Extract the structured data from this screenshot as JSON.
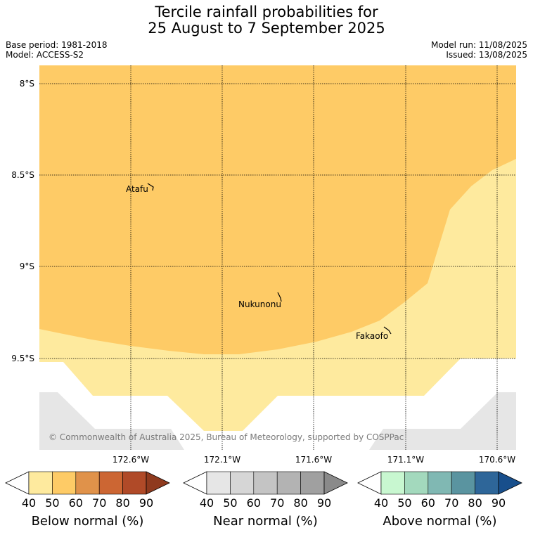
{
  "title": {
    "line1": "Tercile rainfall probabilities for",
    "line2": "25 August to 7 September 2025"
  },
  "meta": {
    "base_period": "Base period: 1981-2018",
    "model": "Model: ACCESS-S2",
    "model_run": "Model run: 11/08/2025",
    "issued": "Issued: 13/08/2025"
  },
  "map": {
    "lat_labels": [
      "8°S",
      "8.5°S",
      "9°S",
      "9.5°S"
    ],
    "lon_labels": [
      "172.6°W",
      "172.1°W",
      "171.6°W",
      "171.1°W",
      "170.6°W"
    ],
    "places": [
      "Atafu",
      "Nukunonu",
      "Fakaofo"
    ],
    "copyright": "© Commonwealth of Australia 2025, Bureau of Meteorology, supported by COSPPac",
    "fill_colors": {
      "below_50_60": "#fecb66",
      "below_40_50": "#feea9e",
      "no_data": "#e6e6e6",
      "background": "#ffffff"
    }
  },
  "colorbars": [
    {
      "label": "Below normal (%)",
      "ticks": [
        "40",
        "50",
        "60",
        "70",
        "80",
        "90"
      ],
      "colors": [
        "#ffffff",
        "#feea9e",
        "#fecb66",
        "#e0924a",
        "#cc6633",
        "#b04a28",
        "#8f3a1e"
      ]
    },
    {
      "label": "Near normal (%)",
      "ticks": [
        "40",
        "50",
        "60",
        "70",
        "80",
        "90"
      ],
      "colors": [
        "#ffffff",
        "#e6e6e6",
        "#d6d6d6",
        "#c4c4c4",
        "#b3b3b3",
        "#a0a0a0",
        "#8a8a8a"
      ]
    },
    {
      "label": "Above normal (%)",
      "ticks": [
        "40",
        "50",
        "60",
        "70",
        "80",
        "90"
      ],
      "colors": [
        "#ffffff",
        "#c8f7d0",
        "#a3d9bd",
        "#80b8b3",
        "#5a94a0",
        "#2e6699",
        "#184f8c"
      ]
    }
  ]
}
